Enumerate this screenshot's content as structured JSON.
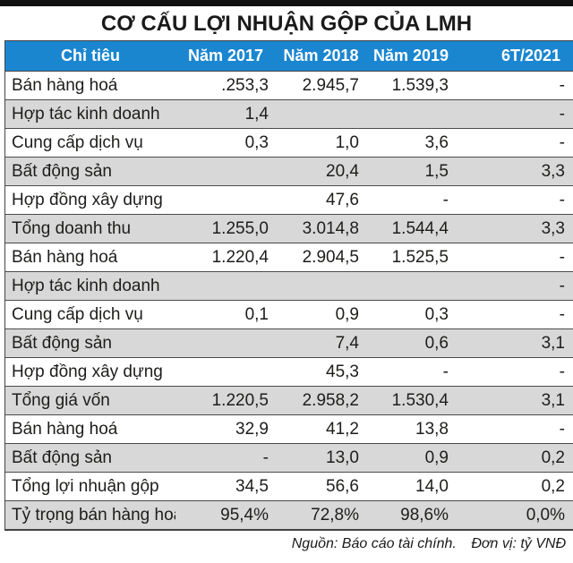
{
  "chart_data": {
    "type": "table",
    "title": "CƠ CẤU LỢI NHUẬN GỘP CỦA LMH",
    "columns": [
      "Chỉ tiêu",
      "Năm 2017",
      "Năm 2018",
      "Năm 2019",
      "6T/2021"
    ],
    "rows": [
      {
        "label": "Bán hàng hoá",
        "values": [
          ".253,3",
          "2.945,7",
          "1.539,3",
          "-"
        ]
      },
      {
        "label": "Hợp tác kinh doanh",
        "values": [
          "1,4",
          "",
          "",
          "-"
        ]
      },
      {
        "label": "Cung cấp dịch vụ",
        "values": [
          "0,3",
          "1,0",
          "3,6",
          "-"
        ]
      },
      {
        "label": "Bất động sản",
        "values": [
          "",
          "20,4",
          "1,5",
          "3,3"
        ]
      },
      {
        "label": "Hợp đồng xây dựng",
        "values": [
          "",
          "47,6",
          "-",
          "-"
        ]
      },
      {
        "label": "Tổng doanh thu",
        "values": [
          "1.255,0",
          "3.014,8",
          "1.544,4",
          "3,3"
        ]
      },
      {
        "label": "Bán hàng hoá",
        "values": [
          "1.220,4",
          "2.904,5",
          "1.525,5",
          "-"
        ]
      },
      {
        "label": "Hợp tác kinh doanh",
        "values": [
          "",
          "",
          "",
          "-"
        ]
      },
      {
        "label": "Cung cấp dịch vụ",
        "values": [
          "0,1",
          "0,9",
          "0,3",
          "-"
        ]
      },
      {
        "label": "Bất động sản",
        "values": [
          "",
          "7,4",
          "0,6",
          "3,1"
        ]
      },
      {
        "label": "Hợp đồng xây dựng",
        "values": [
          "",
          "45,3",
          "-",
          "-"
        ]
      },
      {
        "label": "Tổng giá vốn",
        "values": [
          "1.220,5",
          "2.958,2",
          "1.530,4",
          "3,1"
        ]
      },
      {
        "label": "Bán hàng hoá",
        "values": [
          "32,9",
          "41,2",
          "13,8",
          "-"
        ]
      },
      {
        "label": "Bất động sản",
        "values": [
          "-",
          "13,0",
          "0,9",
          "0,2"
        ]
      },
      {
        "label": "Tổng lợi nhuận gộp",
        "values": [
          "34,5",
          "56,6",
          "14,0",
          "0,2"
        ]
      },
      {
        "label": "Tỷ trọng bán hàng hoá",
        "values": [
          "95,4%",
          "72,8%",
          "98,6%",
          "0,0%"
        ]
      }
    ],
    "source_note": "Nguồn: Báo cáo tài chính.",
    "unit_note": "Đơn vị: tỷ VNĐ"
  },
  "colors": {
    "header_bg": "#1b86d0",
    "header_text": "#ffffff",
    "row_stripe": "#d8d8d8",
    "border": "#444444",
    "top_bar": "#111111",
    "text": "#1d1d1b"
  }
}
